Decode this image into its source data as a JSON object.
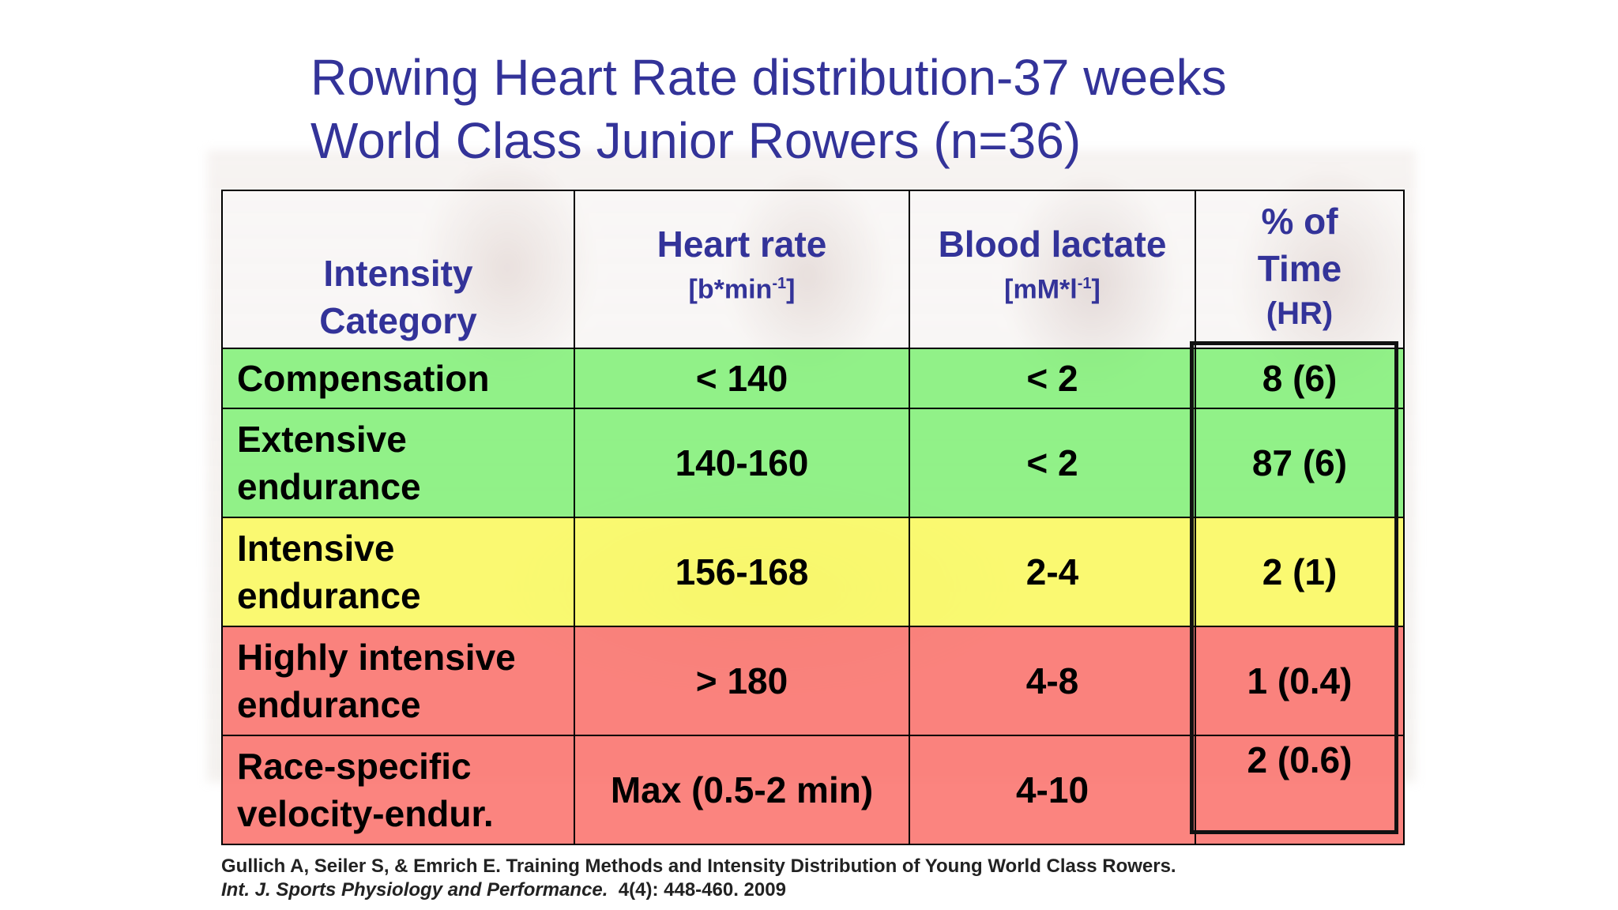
{
  "title": {
    "line1": "Rowing Heart Rate distribution-37 weeks",
    "line2": "World Class Junior Rowers (n=36)"
  },
  "table": {
    "headers": {
      "category_line1": "Intensity",
      "category_line2": "Category",
      "heart_rate": "Heart rate",
      "heart_rate_unit_base": "[b*min",
      "heart_rate_unit_sup": "-1",
      "heart_rate_unit_end": "]",
      "lactate": "Blood lactate",
      "lactate_unit_base": "[mM*l",
      "lactate_unit_sup": "-1",
      "lactate_unit_end": "]",
      "pct_line1": "% of",
      "pct_line2": "Time",
      "pct_line3": "(HR)"
    },
    "rows": [
      {
        "category_line1": "Compensation",
        "category_line2": "",
        "heart_rate": "< 140",
        "lactate": "< 2",
        "pct": "8 (6)",
        "color": "#78f06e"
      },
      {
        "category_line1": "Extensive",
        "category_line2": "endurance",
        "heart_rate": "140-160",
        "lactate": "< 2",
        "pct": "87 (6)",
        "color": "#78f06e"
      },
      {
        "category_line1": "Intensive",
        "category_line2": "endurance",
        "heart_rate": "156-168",
        "lactate": "2-4",
        "pct": "2 (1)",
        "color": "#fafa5a"
      },
      {
        "category_line1": "Highly intensive",
        "category_line2": "endurance",
        "heart_rate": "> 180",
        "lactate": "4-8",
        "pct": "1 (0.4)",
        "color": "#fa6e69"
      },
      {
        "category_line1": "Race-specific",
        "category_line2": "velocity-endur.",
        "heart_rate": "Max (0.5-2 min)",
        "lactate": "4-10",
        "pct": "2 (0.6)",
        "color": "#fa6e69"
      }
    ]
  },
  "citation": {
    "line1": "Gullich A, Seiler S, & Emrich E. Training Methods and Intensity Distribution of Young World Class Rowers.",
    "journal": "Int. J. Sports Physiology and Performance.",
    "details": "  4(4): 448-460. 2009"
  }
}
